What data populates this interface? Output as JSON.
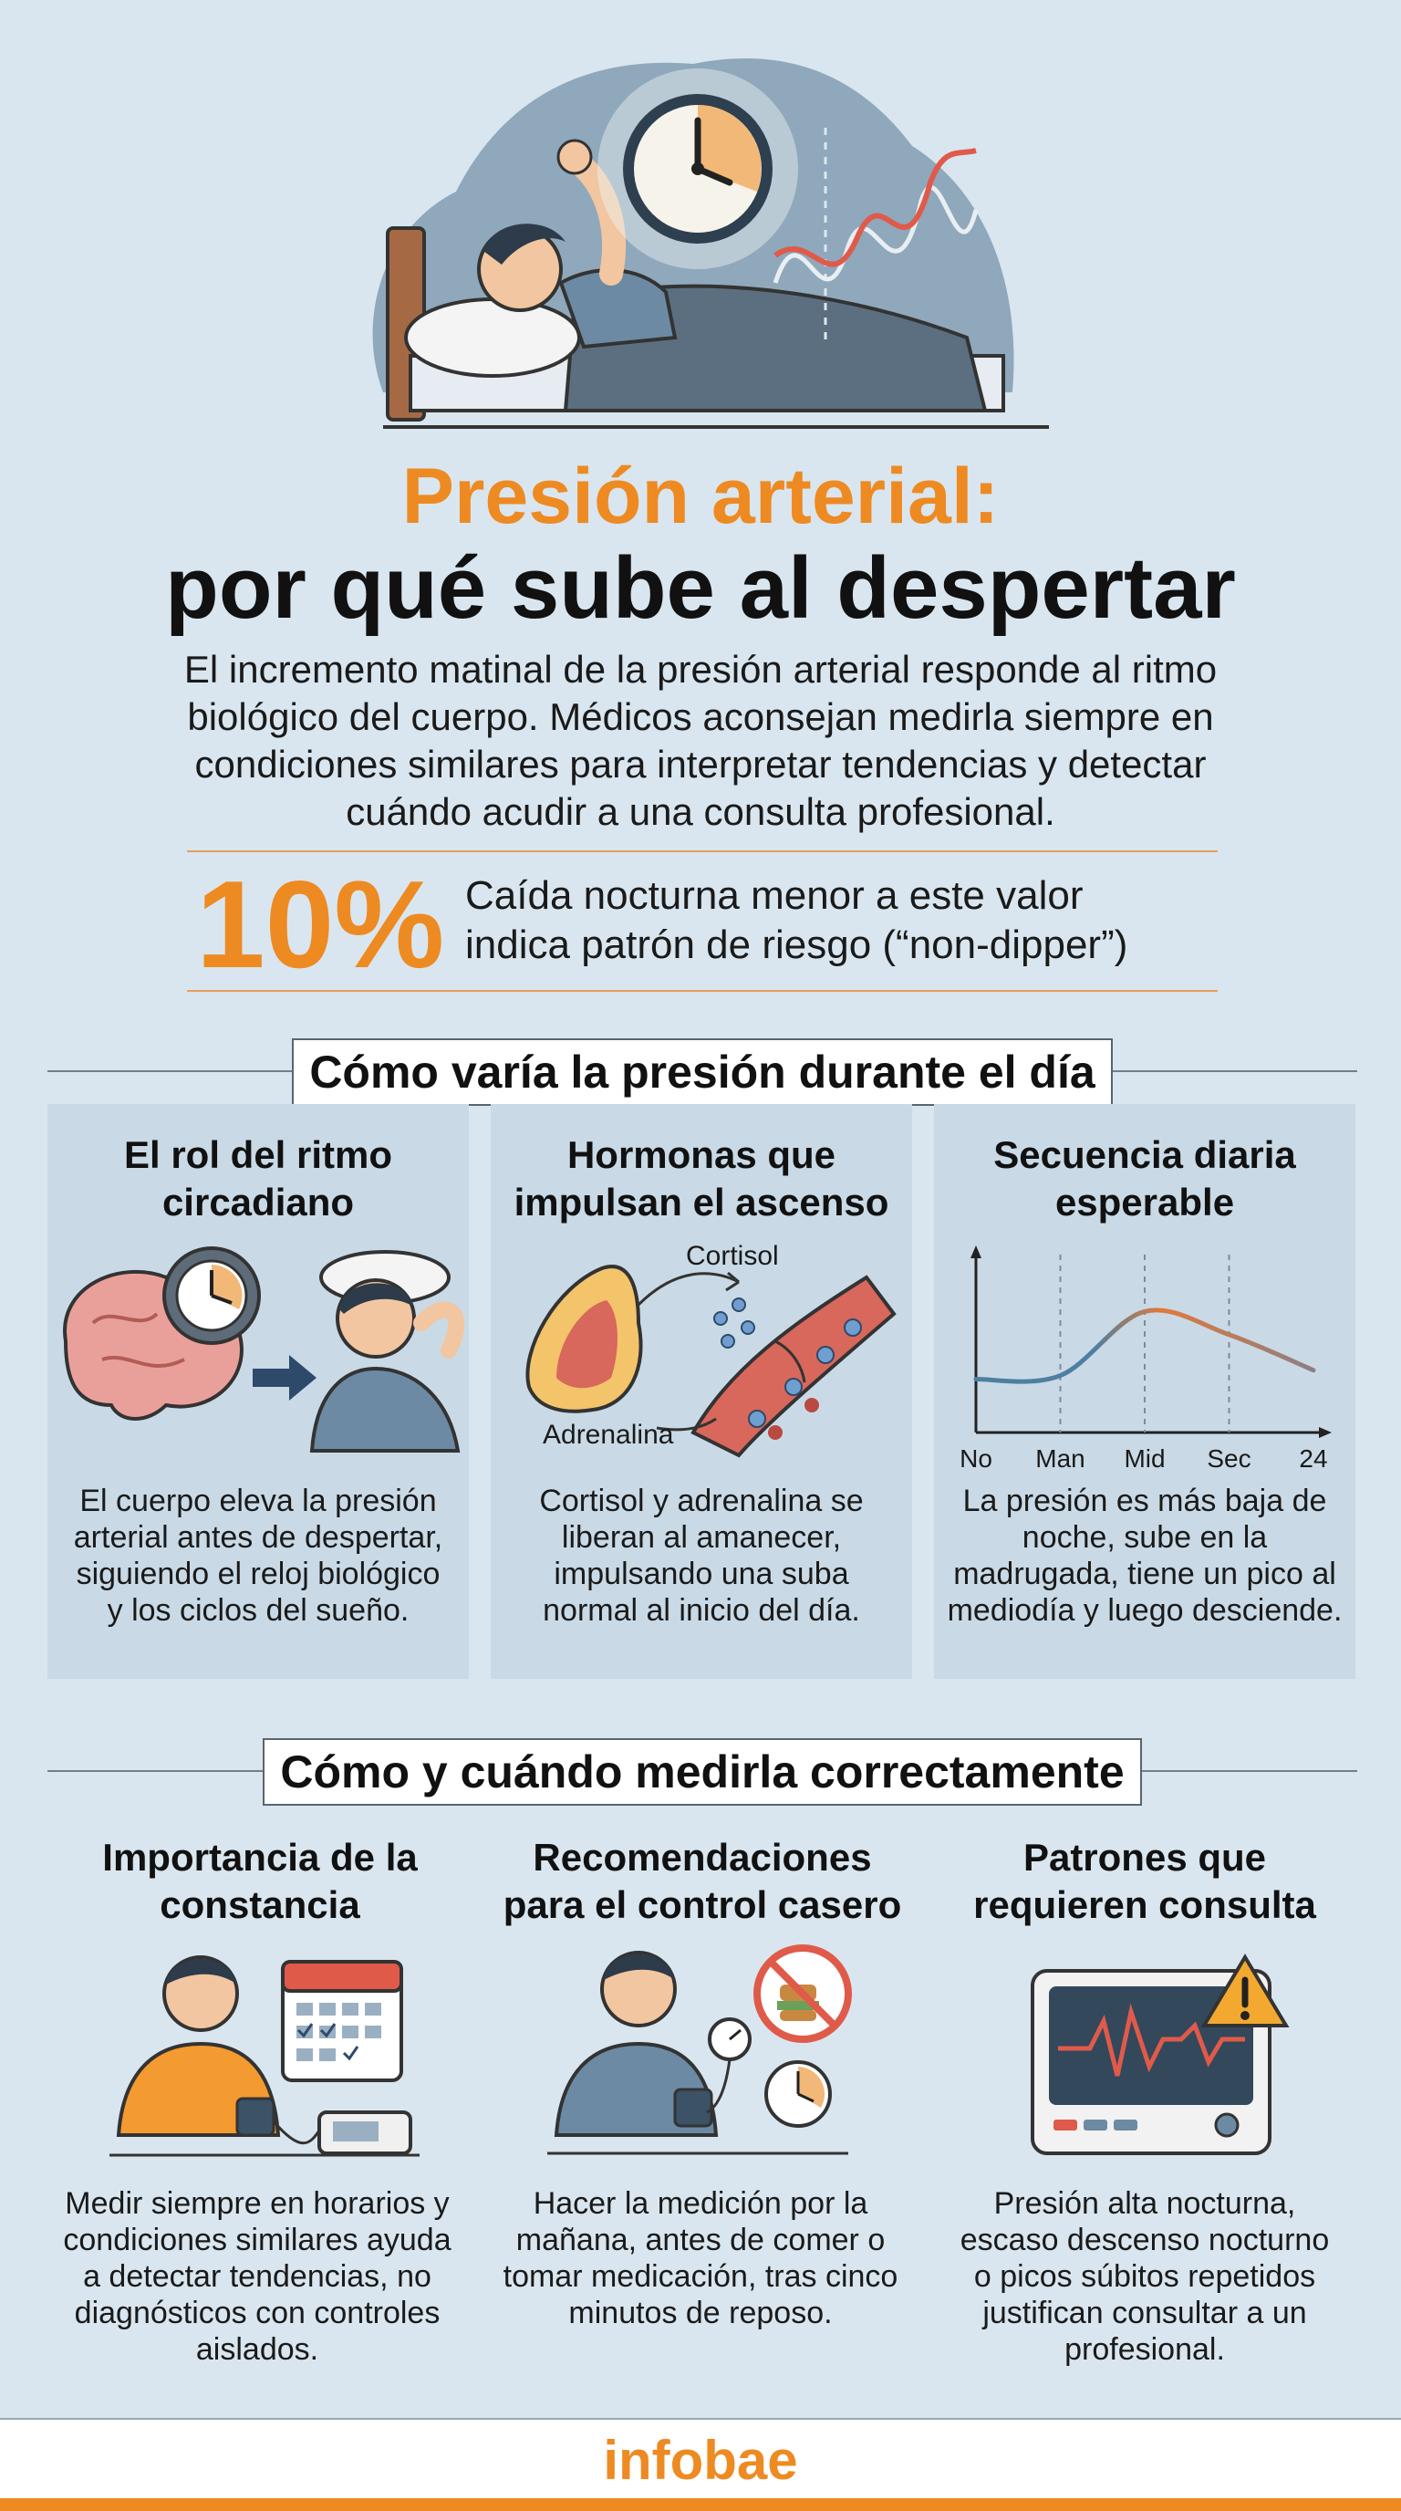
{
  "header": {
    "title_line1": "Presión arterial:",
    "title_line2": "por qué sube al despertar",
    "intro": "El incremento matinal de la presión arterial responde al ritmo biológico del cuerpo. Médicos aconsejan medirla siempre en condiciones similares para interpretar tendencias y detectar cuándo acudir a una consulta profesional."
  },
  "stat": {
    "value": "10%",
    "text_line1": "Caída nocturna menor a este valor",
    "text_line2": "indica patrón de riesgo (“non-dipper”)"
  },
  "section1": {
    "title": "Cómo varía la presión durante el día",
    "cards": [
      {
        "title": "El rol del ritmo circadiano",
        "desc": "El cuerpo eleva la presión arterial antes de despertar, siguiendo el reloj biológico y los ciclos del sueño."
      },
      {
        "title": "Hormonas que impulsan el ascenso",
        "label_cortisol": "Cortisol",
        "label_adrenalina": "Adrenalina",
        "desc": "Cortisol y adrenalina se liberan al amanecer, impulsando una suba normal al inicio del día."
      },
      {
        "title": "Secuencia diaria esperable",
        "desc": "La presión es más baja de noche, sube en la madrugada, tiene un pico al mediodía y luego desciende."
      }
    ]
  },
  "chart_data": {
    "type": "line",
    "categories": [
      "No",
      "Man",
      "Mid",
      "Sec",
      "24"
    ],
    "title": "",
    "xlabel": "",
    "ylabel": "",
    "series": [
      {
        "values": [
          0.3,
          0.32,
          0.68,
          0.55,
          0.35
        ]
      }
    ],
    "colors": [
      "#4f7fa0",
      "#e07a3a"
    ],
    "grid": false
  },
  "section2": {
    "title": "Cómo y cuándo medirla correctamente",
    "cards": [
      {
        "title": "Importancia de la constancia",
        "desc": "Medir siempre en horarios y condiciones similares ayuda a detectar tendencias, no diagnósticos con controles aislados."
      },
      {
        "title": "Recomendaciones para el control casero",
        "desc": "Hacer la medición por la mañana, antes de comer o tomar medicación, tras cinco minutos de reposo."
      },
      {
        "title": "Patrones que requieren consulta",
        "desc": "Presión alta nocturna, escaso descenso nocturno o picos súbitos repetidos justifican consultar a un profesional."
      }
    ]
  },
  "footer": {
    "brand": "infobae"
  },
  "colors": {
    "accent": "#ee8a22",
    "background": "#d9e6ef",
    "panel": "#c9dae6"
  }
}
